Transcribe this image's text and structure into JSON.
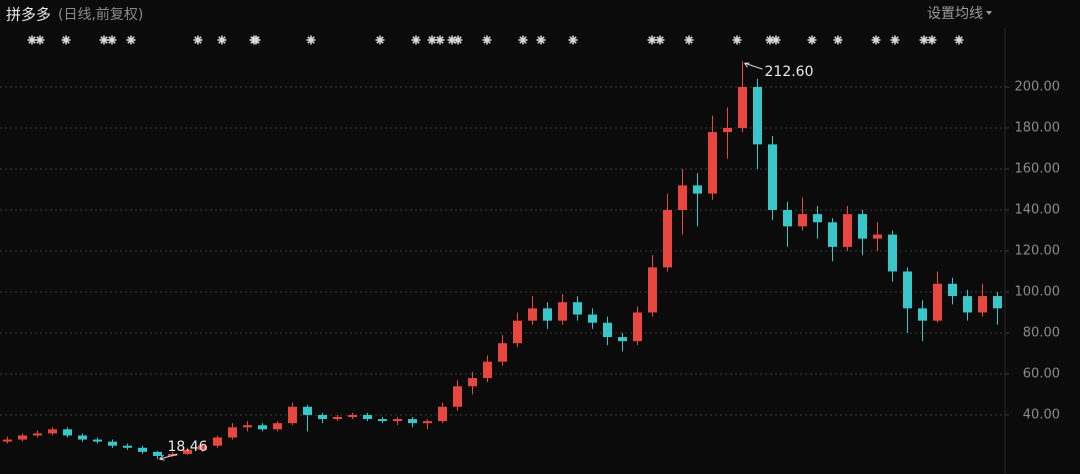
{
  "chart_data": {
    "type": "candlestick",
    "title": "拼多多",
    "subtitle": "(日线,前复权)",
    "menu_label": "设置均线",
    "up_color": "#e8473f",
    "down_color": "#39c6c8",
    "grid": true,
    "ylim": [
      11.2,
      215.6
    ],
    "yticks": [
      {
        "value": 40,
        "label": "40.00"
      },
      {
        "value": 60,
        "label": "60.00"
      },
      {
        "value": 80,
        "label": "80.00"
      },
      {
        "value": 100,
        "label": "100.00"
      },
      {
        "value": 120,
        "label": "120.00"
      },
      {
        "value": 140,
        "label": "140.00"
      },
      {
        "value": 160,
        "label": "160.00"
      },
      {
        "value": 180,
        "label": "180.00"
      },
      {
        "value": 200,
        "label": "200.00"
      }
    ],
    "max_label": "212.60",
    "min_label": "18.46",
    "categories": [
      null,
      null,
      null,
      null,
      null,
      null,
      null,
      null,
      null,
      null,
      null,
      null,
      null,
      null,
      null,
      null,
      null,
      null,
      null,
      null,
      null,
      null,
      null,
      null,
      null,
      null,
      null,
      null,
      null,
      null,
      null,
      null,
      null,
      null,
      null,
      null,
      null,
      null,
      null,
      null,
      null,
      null,
      null,
      null,
      null,
      null,
      null,
      null,
      null,
      null,
      null,
      null,
      null,
      null,
      null,
      null,
      null,
      null,
      null,
      null,
      null,
      null,
      null,
      null,
      null,
      null,
      null
    ],
    "open": [
      27,
      28,
      30,
      31,
      33,
      30,
      28,
      27,
      25,
      24,
      22,
      20,
      21,
      23,
      25,
      29,
      34,
      35,
      33,
      36,
      44,
      40,
      38,
      39,
      40,
      38,
      37,
      38,
      36,
      37,
      44,
      54,
      58,
      66,
      75,
      86,
      92,
      86,
      95,
      89,
      85,
      78,
      76,
      90,
      112,
      140,
      152,
      148,
      178,
      180,
      200,
      172,
      140,
      132,
      138,
      134,
      122,
      138,
      126,
      128,
      110,
      92,
      86,
      104,
      98,
      90,
      98
    ],
    "high": [
      29.5,
      31,
      32.5,
      34,
      34,
      31,
      29,
      28,
      26,
      25,
      22.5,
      22,
      24,
      26,
      30,
      36,
      37,
      36,
      37,
      46,
      45,
      41,
      40,
      41,
      41,
      39,
      39,
      39,
      38,
      46,
      57,
      61,
      69,
      79,
      90,
      98,
      95,
      99,
      98,
      92,
      88,
      80,
      93,
      118,
      148,
      160,
      158,
      186,
      190,
      212.6,
      204,
      176,
      144,
      146,
      142,
      136,
      142,
      140,
      134,
      130,
      112,
      96,
      110,
      107,
      101,
      104,
      100
    ],
    "low": [
      26,
      27,
      29,
      30,
      29,
      27,
      26,
      24,
      23,
      21,
      18.46,
      19.5,
      20.5,
      22,
      24,
      28,
      32,
      32,
      32,
      35,
      32,
      36,
      37,
      38,
      37,
      36,
      35,
      34,
      33,
      36,
      42,
      50,
      56,
      64,
      73,
      84,
      82,
      84,
      86,
      82,
      74,
      71,
      74,
      88,
      110,
      128,
      132,
      145,
      165,
      178,
      160,
      135,
      122,
      130,
      126,
      115,
      120,
      118,
      120,
      105,
      80,
      76,
      85,
      94,
      86,
      88,
      84
    ],
    "close": [
      28,
      30,
      31,
      33,
      30,
      28,
      27,
      25,
      24,
      22,
      20,
      21,
      23,
      25,
      29,
      34,
      35,
      33,
      36,
      44,
      40,
      38,
      39,
      40,
      38,
      37,
      38,
      36,
      37,
      44,
      54,
      58,
      66,
      75,
      86,
      92,
      86,
      95,
      89,
      85,
      78,
      76,
      90,
      112,
      140,
      152,
      148,
      178,
      180,
      200,
      172,
      140,
      132,
      138,
      134,
      122,
      138,
      126,
      128,
      110,
      92,
      86,
      104,
      98,
      90,
      98,
      92
    ]
  }
}
